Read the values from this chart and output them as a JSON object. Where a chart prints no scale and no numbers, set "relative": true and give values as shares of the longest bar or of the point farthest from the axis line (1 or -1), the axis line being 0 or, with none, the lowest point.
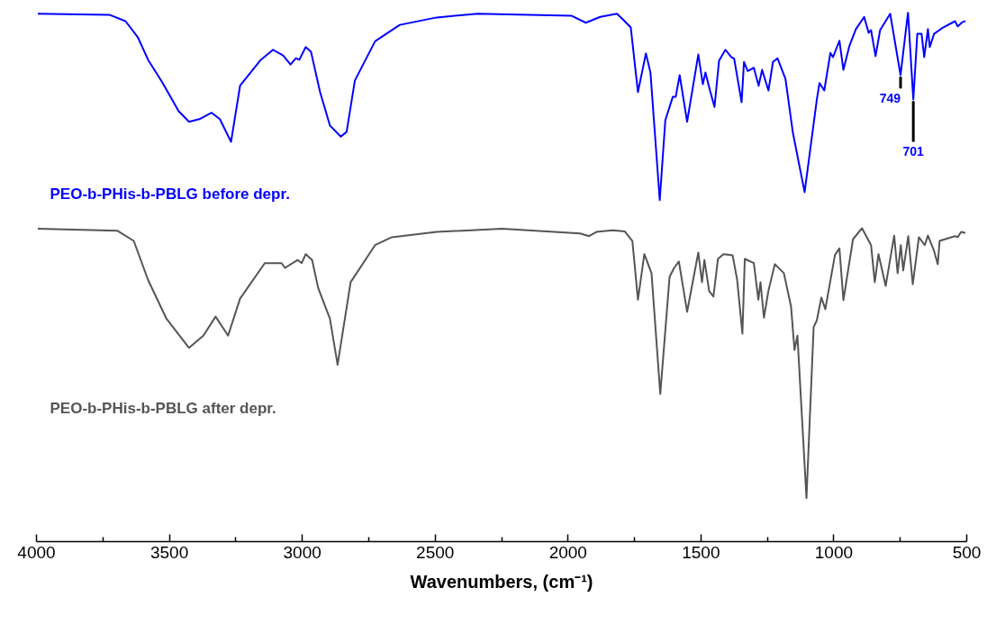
{
  "chart_data": {
    "type": "line",
    "relative": true,
    "xlabel": "Wavenumbers, (cm⁻¹)",
    "xlim": [
      4000,
      500
    ],
    "xticks": [
      4000,
      {
        "value": 3750,
        "label": null
      },
      3500,
      {
        "value": 3250,
        "label": null
      },
      3000,
      {
        "value": 2750,
        "label": null
      },
      2500,
      {
        "value": 2250,
        "label": null
      },
      2000,
      {
        "value": 1750,
        "label": null
      },
      1500,
      {
        "value": 1250,
        "label": null
      },
      1000,
      {
        "value": 750,
        "label": null
      },
      500
    ],
    "grid": false,
    "marker": "none",
    "line_style": "solid",
    "annotations": [
      {
        "text": "749",
        "x": 749,
        "y": 0.881
      },
      {
        "text": "701",
        "x": 701,
        "y": 0.835
      }
    ],
    "series": [
      {
        "name": "PEO-b-PHis-b-PBLG before depr.",
        "color": "#0000ff",
        "x": [
          3995,
          3726,
          3665,
          3618,
          3580,
          3526,
          3465,
          3426,
          3387,
          3341,
          3310,
          3268,
          3234,
          3156,
          3110,
          3072,
          3044,
          3024,
          3011,
          2987,
          2967,
          2933,
          2896,
          2855,
          2833,
          2802,
          2726,
          2678,
          2633,
          2494,
          2340,
          1986,
          1933,
          1879,
          1816,
          1787,
          1764,
          1737,
          1707,
          1690,
          1655,
          1634,
          1606,
          1595,
          1580,
          1552,
          1510,
          1493,
          1483,
          1466,
          1449,
          1432,
          1408,
          1386,
          1375,
          1362,
          1347,
          1338,
          1324,
          1301,
          1283,
          1270,
          1246,
          1229,
          1212,
          1182,
          1154,
          1110,
          1064,
          1054,
          1036,
          1013,
          1003,
          979,
          964,
          941,
          917,
          886,
          869,
          860,
          843,
          826,
          788,
          749,
          721,
          701,
          686,
          670,
          660,
          646,
          639,
          623,
          589,
          544,
          534,
          517,
          505
        ],
        "values": [
          0.997,
          0.995,
          0.983,
          0.952,
          0.91,
          0.867,
          0.813,
          0.793,
          0.798,
          0.81,
          0.798,
          0.755,
          0.861,
          0.91,
          0.929,
          0.918,
          0.901,
          0.913,
          0.91,
          0.934,
          0.925,
          0.849,
          0.786,
          0.765,
          0.774,
          0.871,
          0.945,
          0.961,
          0.976,
          0.99,
          0.997,
          0.993,
          0.98,
          0.991,
          0.997,
          0.983,
          0.971,
          0.849,
          0.922,
          0.886,
          0.645,
          0.796,
          0.84,
          0.84,
          0.881,
          0.793,
          0.92,
          0.864,
          0.886,
          0.852,
          0.821,
          0.908,
          0.929,
          0.915,
          0.912,
          0.874,
          0.83,
          0.906,
          0.889,
          0.895,
          0.861,
          0.891,
          0.852,
          0.906,
          0.913,
          0.874,
          0.772,
          0.66,
          0.835,
          0.866,
          0.852,
          0.923,
          0.915,
          0.946,
          0.891,
          0.937,
          0.968,
          0.991,
          0.961,
          0.966,
          0.917,
          0.966,
          0.997,
          0.881,
          1,
          0.835,
          0.959,
          0.959,
          0.915,
          0.968,
          0.934,
          0.959,
          0.971,
          0.983,
          0.973,
          0.981,
          0.983
        ]
      },
      {
        "name": "PEO-b-PHis-b-PBLG after depr.",
        "color": "#555555",
        "x": [
          3995,
          3695,
          3634,
          3580,
          3511,
          3426,
          3372,
          3326,
          3279,
          3234,
          3141,
          3078,
          3065,
          3017,
          3002,
          2987,
          2963,
          2940,
          2896,
          2867,
          2818,
          2726,
          2663,
          2494,
          2248,
          1955,
          1921,
          1893,
          1832,
          1787,
          1758,
          1737,
          1713,
          1686,
          1653,
          1618,
          1601,
          1583,
          1552,
          1510,
          1496,
          1487,
          1469,
          1453,
          1436,
          1415,
          1381,
          1364,
          1344,
          1335,
          1301,
          1284,
          1276,
          1263,
          1246,
          1222,
          1188,
          1161,
          1148,
          1137,
          1103,
          1076,
          1064,
          1047,
          1032,
          996,
          979,
          964,
          928,
          894,
          860,
          846,
          832,
          805,
          773,
          760,
          748,
          739,
          720,
          703,
          680,
          658,
          646,
          623,
          609,
          602,
          544,
          534,
          521,
          505
        ],
        "values": [
          0.591,
          0.587,
          0.568,
          0.494,
          0.421,
          0.366,
          0.389,
          0.425,
          0.389,
          0.459,
          0.526,
          0.526,
          0.517,
          0.532,
          0.526,
          0.543,
          0.532,
          0.479,
          0.421,
          0.334,
          0.49,
          0.56,
          0.575,
          0.585,
          0.591,
          0.582,
          0.577,
          0.585,
          0.588,
          0.586,
          0.568,
          0.457,
          0.543,
          0.507,
          0.279,
          0.5,
          0.517,
          0.529,
          0.434,
          0.546,
          0.49,
          0.532,
          0.473,
          0.463,
          0.534,
          0.543,
          0.541,
          0.495,
          0.393,
          0.534,
          0.526,
          0.457,
          0.49,
          0.423,
          0.474,
          0.524,
          0.507,
          0.444,
          0.362,
          0.389,
          0.082,
          0.405,
          0.418,
          0.461,
          0.439,
          0.541,
          0.554,
          0.456,
          0.571,
          0.592,
          0.56,
          0.49,
          0.543,
          0.483,
          0.578,
          0.507,
          0.56,
          0.512,
          0.577,
          0.486,
          0.575,
          0.56,
          0.578,
          0.549,
          0.524,
          0.568,
          0.577,
          0.575,
          0.585,
          0.583
        ]
      }
    ]
  }
}
